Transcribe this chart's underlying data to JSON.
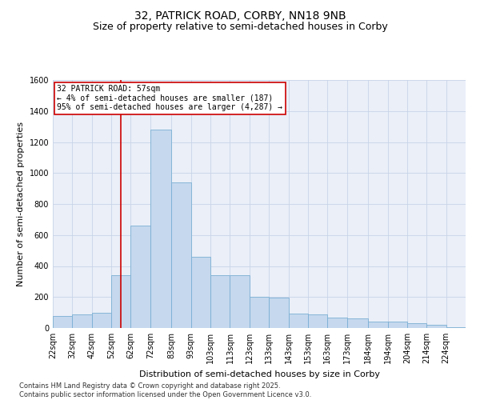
{
  "title": "32, PATRICK ROAD, CORBY, NN18 9NB",
  "subtitle": "Size of property relative to semi-detached houses in Corby",
  "xlabel": "Distribution of semi-detached houses by size in Corby",
  "ylabel": "Number of semi-detached properties",
  "footnote": "Contains HM Land Registry data © Crown copyright and database right 2025.\nContains public sector information licensed under the Open Government Licence v3.0.",
  "bar_labels": [
    "22sqm",
    "32sqm",
    "42sqm",
    "52sqm",
    "62sqm",
    "72sqm",
    "83sqm",
    "93sqm",
    "103sqm",
    "113sqm",
    "123sqm",
    "133sqm",
    "143sqm",
    "153sqm",
    "163sqm",
    "173sqm",
    "184sqm",
    "194sqm",
    "204sqm",
    "214sqm",
    "224sqm"
  ],
  "bar_lefts": [
    22,
    32,
    42,
    52,
    62,
    72,
    83,
    93,
    103,
    113,
    123,
    133,
    143,
    153,
    163,
    173,
    184,
    194,
    204,
    214,
    224
  ],
  "bar_widths": [
    10,
    10,
    10,
    10,
    10,
    11,
    10,
    10,
    10,
    10,
    10,
    10,
    10,
    10,
    10,
    11,
    10,
    10,
    10,
    10,
    10
  ],
  "bar_values": [
    80,
    90,
    100,
    340,
    660,
    1280,
    940,
    460,
    340,
    340,
    200,
    195,
    95,
    90,
    65,
    60,
    40,
    40,
    30,
    20,
    5
  ],
  "bar_color": "#c5d8ed",
  "bar_edge_color": "#7aafd4",
  "vline_x": 57,
  "vline_color": "#cc0000",
  "annotation_text": "32 PATRICK ROAD: 57sqm\n← 4% of semi-detached houses are smaller (187)\n95% of semi-detached houses are larger (4,287) →",
  "ylim": [
    0,
    1600
  ],
  "yticks": [
    0,
    200,
    400,
    600,
    800,
    1000,
    1200,
    1400,
    1600
  ],
  "grid_color": "#c8d4e8",
  "bg_color": "#eaeff8",
  "title_fontsize": 10,
  "subtitle_fontsize": 9,
  "axis_label_fontsize": 8,
  "tick_fontsize": 7,
  "footnote_fontsize": 6,
  "annotation_fontsize": 7
}
